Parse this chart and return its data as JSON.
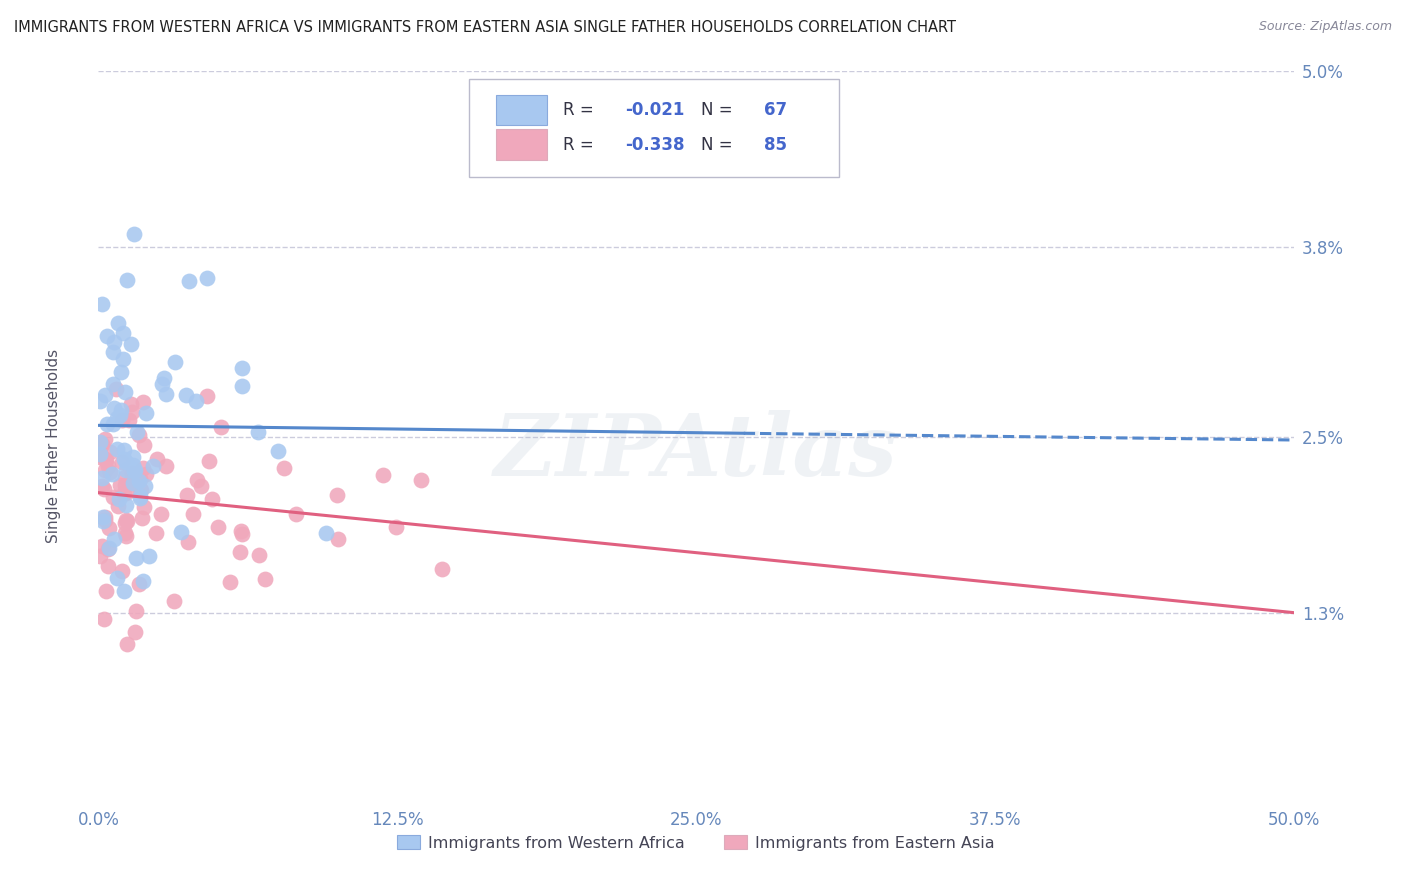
{
  "title": "IMMIGRANTS FROM WESTERN AFRICA VS IMMIGRANTS FROM EASTERN ASIA SINGLE FATHER HOUSEHOLDS CORRELATION CHART",
  "source": "Source: ZipAtlas.com",
  "xlabel_blue": "Immigrants from Western Africa",
  "xlabel_pink": "Immigrants from Eastern Asia",
  "ylabel": "Single Father Households",
  "x_min": 0.0,
  "x_max": 50.0,
  "y_min": 0.0,
  "y_max": 5.0,
  "y_ticks": [
    1.3,
    2.5,
    3.8,
    5.0
  ],
  "x_ticks": [
    0.0,
    12.5,
    25.0,
    37.5,
    50.0
  ],
  "watermark": "ZIPAtlas",
  "blue_R": -0.021,
  "blue_N": 67,
  "pink_R": -0.338,
  "pink_N": 85,
  "blue_color": "#a8c8f0",
  "pink_color": "#f0a8bc",
  "blue_line_color": "#5588cc",
  "pink_line_color": "#e06080",
  "grid_color": "#ccccdd",
  "title_color": "#222222",
  "tick_label_color": "#6688bb",
  "R_value_color": "#4466cc",
  "legend_text_color": "#333344",
  "blue_trend_x0": 0.0,
  "blue_trend_y0": 2.58,
  "blue_trend_x1": 50.0,
  "blue_trend_y1": 2.48,
  "blue_solid_end": 27.0,
  "pink_trend_x0": 0.0,
  "pink_trend_y0": 2.12,
  "pink_trend_x1": 50.0,
  "pink_trend_y1": 1.3
}
